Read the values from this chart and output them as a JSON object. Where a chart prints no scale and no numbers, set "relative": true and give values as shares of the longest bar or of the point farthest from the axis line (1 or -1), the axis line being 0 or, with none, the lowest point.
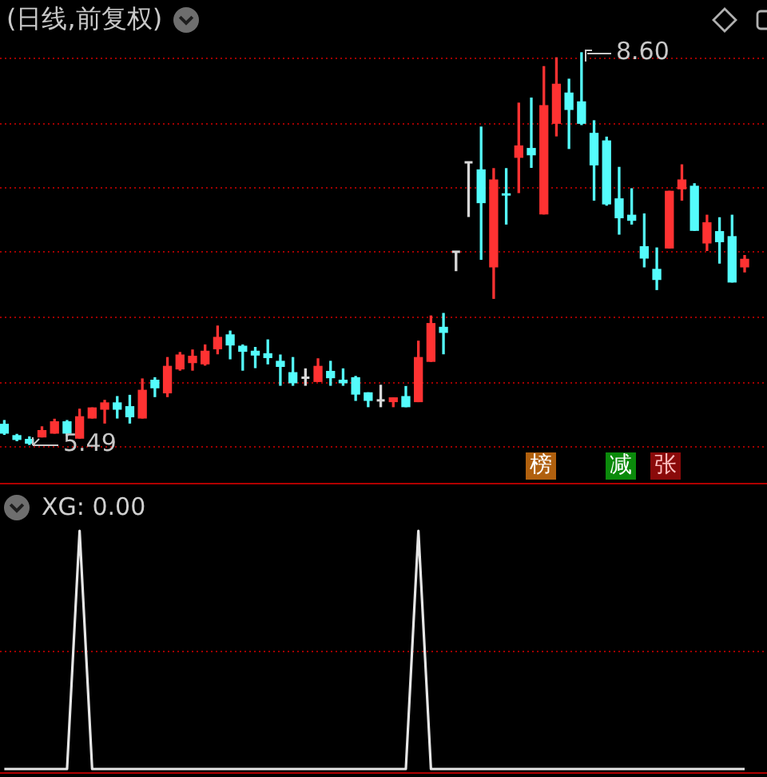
{
  "chart_data": [
    {
      "type": "candlestick",
      "title": "(日线,前复权)",
      "categories": [
        null,
        null,
        null,
        null,
        null,
        null,
        null,
        null,
        null,
        null,
        null,
        null,
        null,
        null,
        null,
        null,
        null,
        null,
        null,
        null,
        null,
        null,
        null,
        null,
        null,
        null,
        null,
        null,
        null,
        null,
        null,
        null,
        null,
        null,
        null,
        null,
        null,
        null,
        null,
        null,
        null,
        null,
        null,
        null,
        null,
        null,
        null,
        null,
        null,
        null,
        null,
        null,
        null,
        null,
        null,
        null,
        null,
        null,
        null,
        null
      ],
      "ohlc": [
        [
          5.65,
          5.68,
          5.57,
          5.58
        ],
        [
          5.56,
          5.57,
          5.52,
          5.53
        ],
        [
          5.53,
          5.55,
          5.49,
          5.5
        ],
        [
          5.55,
          5.63,
          5.55,
          5.6
        ],
        [
          5.58,
          5.69,
          5.58,
          5.67
        ],
        [
          5.67,
          5.68,
          5.56,
          5.58
        ],
        [
          5.54,
          5.77,
          5.54,
          5.71
        ],
        [
          5.7,
          5.78,
          5.7,
          5.78
        ],
        [
          5.77,
          5.84,
          5.66,
          5.82
        ],
        [
          5.82,
          5.87,
          5.7,
          5.77
        ],
        [
          5.79,
          5.88,
          5.66,
          5.71
        ],
        [
          5.7,
          6.01,
          5.7,
          5.92
        ],
        [
          6.0,
          6.02,
          5.87,
          5.94
        ],
        [
          5.9,
          6.18,
          5.87,
          6.11
        ],
        [
          6.09,
          6.22,
          6.08,
          6.2
        ],
        [
          6.14,
          6.24,
          6.08,
          6.19
        ],
        [
          6.13,
          6.28,
          6.12,
          6.23
        ],
        [
          6.25,
          6.43,
          6.21,
          6.34
        ],
        [
          6.36,
          6.39,
          6.17,
          6.28
        ],
        [
          6.27,
          6.28,
          6.08,
          6.23
        ],
        [
          6.23,
          6.26,
          6.1,
          6.2
        ],
        [
          6.21,
          6.32,
          6.13,
          6.18
        ],
        [
          6.15,
          6.2,
          5.96,
          6.11
        ],
        [
          6.06,
          6.18,
          5.96,
          5.98
        ],
        [
          6.02,
          6.09,
          5.96,
          6.02
        ],
        [
          5.99,
          6.17,
          5.99,
          6.11
        ],
        [
          6.07,
          6.15,
          5.96,
          6.02
        ],
        [
          6.0,
          6.09,
          5.96,
          5.98
        ],
        [
          6.02,
          6.03,
          5.84,
          5.89
        ],
        [
          5.9,
          5.9,
          5.79,
          5.84
        ],
        [
          5.84,
          5.96,
          5.79,
          5.84
        ],
        [
          5.83,
          5.86,
          5.79,
          5.86
        ],
        [
          5.87,
          5.95,
          5.79,
          5.79
        ],
        [
          5.83,
          6.31,
          5.83,
          6.18
        ],
        [
          6.15,
          6.51,
          6.15,
          6.45
        ],
        [
          6.42,
          6.53,
          6.21,
          6.38
        ],
        [
          7.02,
          7.02,
          6.87,
          7.02
        ],
        [
          7.73,
          7.73,
          7.3,
          7.73
        ],
        [
          7.67,
          8.01,
          6.96,
          7.41
        ],
        [
          6.9,
          7.68,
          6.65,
          7.59
        ],
        [
          7.48,
          7.68,
          7.24,
          7.47
        ],
        [
          7.77,
          8.2,
          7.49,
          7.86
        ],
        [
          7.84,
          8.24,
          7.69,
          7.79
        ],
        [
          7.32,
          8.49,
          7.32,
          8.18
        ],
        [
          8.04,
          8.56,
          7.94,
          8.35
        ],
        [
          8.28,
          8.39,
          7.84,
          8.15
        ],
        [
          8.21,
          8.6,
          8.03,
          8.04
        ],
        [
          7.96,
          8.06,
          7.43,
          7.71
        ],
        [
          7.9,
          7.93,
          7.39,
          7.4
        ],
        [
          7.44,
          7.69,
          7.16,
          7.29
        ],
        [
          7.31,
          7.52,
          7.24,
          7.27
        ],
        [
          7.06,
          7.32,
          6.9,
          6.97
        ],
        [
          6.88,
          7.05,
          6.72,
          6.8
        ],
        [
          7.05,
          7.5,
          7.05,
          7.5
        ],
        [
          7.52,
          7.71,
          7.43,
          7.59
        ],
        [
          7.54,
          7.56,
          7.19,
          7.19
        ],
        [
          7.09,
          7.31,
          7.03,
          7.25
        ],
        [
          7.18,
          7.29,
          6.93,
          7.1
        ],
        [
          7.14,
          7.31,
          6.78,
          6.78
        ],
        [
          6.9,
          6.99,
          6.86,
          6.96
        ]
      ],
      "colors": [
        "#54fcfc",
        "#54fcfc",
        "#54fcfc",
        "#ff3232",
        "#ff3232",
        "#54fcfc",
        "#ff3232",
        "#ff3232",
        "#ff3232",
        "#54fcfc",
        "#54fcfc",
        "#ff3232",
        "#54fcfc",
        "#ff3232",
        "#ff3232",
        "#ff3232",
        "#ff3232",
        "#ff3232",
        "#54fcfc",
        "#54fcfc",
        "#54fcfc",
        "#54fcfc",
        "#54fcfc",
        "#54fcfc",
        "#d8d8d8",
        "#ff3232",
        "#54fcfc",
        "#54fcfc",
        "#54fcfc",
        "#54fcfc",
        "#d8d8d8",
        "#ff3232",
        "#54fcfc",
        "#ff3232",
        "#ff3232",
        "#54fcfc",
        "#d8d8d8",
        "#d8d8d8",
        "#54fcfc",
        "#ff3232",
        "#54fcfc",
        "#ff3232",
        "#54fcfc",
        "#ff3232",
        "#ff3232",
        "#54fcfc",
        "#54fcfc",
        "#54fcfc",
        "#54fcfc",
        "#54fcfc",
        "#54fcfc",
        "#54fcfc",
        "#54fcfc",
        "#ff3232",
        "#ff3232",
        "#54fcfc",
        "#ff3232",
        "#54fcfc",
        "#54fcfc",
        "#ff3232"
      ],
      "yticks": [
        {
          "value": 5.48,
          "label": null
        },
        {
          "value": 5.99,
          "label": null
        },
        {
          "value": 6.5,
          "label": null
        },
        {
          "value": 7.02,
          "label": null
        },
        {
          "value": 7.53,
          "label": null
        },
        {
          "value": 8.04,
          "label": null
        },
        {
          "value": 8.56,
          "label": null
        }
      ],
      "grid": "y",
      "tick_labels": false,
      "annotations": [
        "8.60",
        "5.49",
        "榜",
        "减",
        "张"
      ]
    },
    {
      "type": "line",
      "title": "XG: 0.00",
      "relative": true,
      "categories": [
        null,
        null,
        null,
        null,
        null,
        null,
        null,
        null,
        null,
        null,
        null,
        null,
        null,
        null,
        null,
        null,
        null,
        null,
        null,
        null,
        null,
        null,
        null,
        null,
        null,
        null,
        null,
        null,
        null,
        null,
        null,
        null,
        null,
        null,
        null,
        null,
        null,
        null,
        null,
        null,
        null,
        null,
        null,
        null,
        null,
        null,
        null,
        null,
        null,
        null,
        null,
        null,
        null,
        null,
        null,
        null,
        null,
        null,
        null,
        null
      ],
      "values": [
        0,
        0,
        0,
        0,
        0,
        0,
        1,
        0,
        0,
        0,
        0,
        0,
        0,
        0,
        0,
        0,
        0,
        0,
        0,
        0,
        0,
        0,
        0,
        0,
        0,
        0,
        0,
        0,
        0,
        0,
        0,
        0,
        0,
        1,
        0,
        0,
        0,
        0,
        0,
        0,
        0,
        0,
        0,
        0,
        0,
        0,
        0,
        0,
        0,
        0,
        0,
        0,
        0,
        0,
        0,
        0,
        0,
        0,
        0,
        0
      ],
      "color": "#e6e6e6",
      "ref_lines": [
        {
          "axis": "y",
          "value": 0.5,
          "color": "#a00000",
          "line_style": "dotted"
        }
      ],
      "tick_labels": false
    }
  ]
}
